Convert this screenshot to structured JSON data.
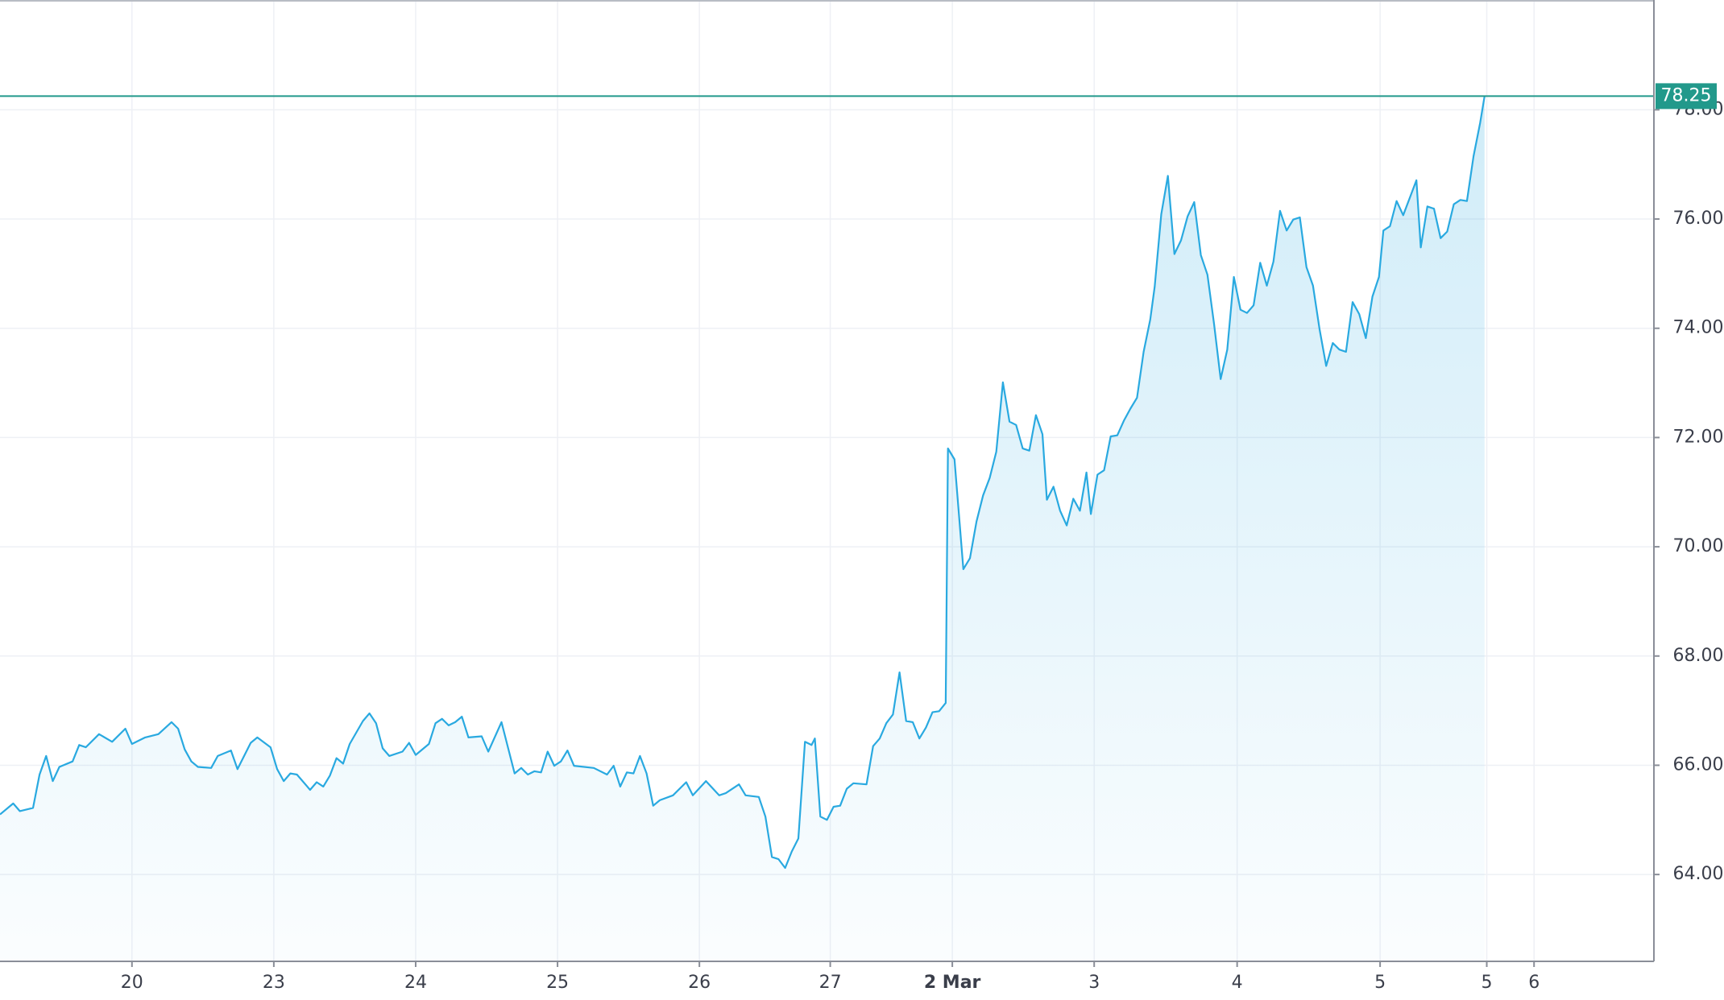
{
  "chart_data": {
    "type": "area",
    "color": "#29a9e0",
    "price_line_color": "#22998b",
    "grid": true,
    "current_price": 78.25,
    "xlim": [
      0,
      150.4
    ],
    "ylim": [
      62.41,
      80.01
    ],
    "yticks": [
      {
        "value": 64,
        "label": "64.00"
      },
      {
        "value": 66,
        "label": "66.00"
      },
      {
        "value": 68,
        "label": "68.00"
      },
      {
        "value": 70,
        "label": "70.00"
      },
      {
        "value": 72,
        "label": "72.00"
      },
      {
        "value": 74,
        "label": "74.00"
      },
      {
        "value": 76,
        "label": "76.00"
      },
      {
        "value": 78,
        "label": "78.00"
      }
    ],
    "xticks": [
      {
        "value": 12.0,
        "label": "20"
      },
      {
        "value": 24.9,
        "label": "23"
      },
      {
        "value": 37.8,
        "label": "24"
      },
      {
        "value": 50.7,
        "label": "25"
      },
      {
        "value": 63.6,
        "label": "26"
      },
      {
        "value": 75.5,
        "label": "27"
      },
      {
        "value": 86.6,
        "label": "2 Mar"
      },
      {
        "value": 99.5,
        "label": "3"
      },
      {
        "value": 112.5,
        "label": "4"
      },
      {
        "value": 125.5,
        "label": "5"
      },
      {
        "value": 135.2,
        "label": "5"
      },
      {
        "value": 139.5,
        "label": "6"
      }
    ],
    "x": [
      0,
      1.2,
      1.8,
      3.0,
      3.6,
      4.2,
      4.8,
      5.4,
      6.6,
      7.2,
      7.8,
      9.0,
      10.2,
      11.4,
      12.0,
      13.2,
      14.4,
      15.6,
      16.2,
      16.8,
      17.4,
      18.0,
      19.2,
      19.8,
      21.0,
      21.6,
      22.8,
      23.4,
      24.6,
      25.2,
      25.8,
      26.4,
      27.0,
      28.2,
      28.8,
      29.4,
      30.0,
      30.6,
      31.2,
      31.8,
      33.0,
      33.6,
      34.2,
      34.8,
      35.4,
      36.6,
      37.2,
      37.8,
      39.0,
      39.6,
      40.2,
      40.8,
      41.4,
      42.0,
      42.6,
      43.8,
      44.4,
      45.6,
      46.8,
      47.4,
      48.0,
      48.6,
      49.2,
      49.8,
      50.4,
      51.0,
      51.6,
      52.2,
      54.0,
      55.2,
      55.8,
      56.4,
      57.0,
      57.6,
      58.2,
      58.8,
      59.4,
      60.0,
      61.2,
      62.4,
      63.0,
      64.2,
      65.4,
      66.0,
      67.2,
      67.8,
      69.0,
      69.6,
      70.2,
      70.8,
      71.4,
      72.0,
      72.6,
      73.2,
      73.8,
      74.1,
      74.6,
      75.2,
      75.8,
      76.4,
      77.0,
      77.6,
      78.8,
      79.4,
      80.0,
      80.6,
      81.2,
      81.8,
      82.4,
      83.0,
      83.6,
      84.2,
      84.8,
      85.4,
      86.0,
      86.2,
      86.8,
      87.6,
      88.2,
      88.8,
      89.4,
      90.0,
      90.6,
      91.2,
      91.8,
      92.4,
      93.0,
      93.6,
      94.2,
      94.8,
      95.2,
      95.8,
      96.4,
      97.0,
      97.6,
      98.2,
      98.8,
      99.2,
      99.8,
      100.4,
      101.0,
      101.6,
      102.2,
      102.8,
      103.4,
      104.0,
      104.6,
      105.0,
      105.6,
      106.2,
      106.8,
      107.4,
      108.0,
      108.6,
      109.2,
      109.8,
      110.4,
      111.0,
      111.6,
      112.2,
      112.8,
      113.4,
      114.0,
      114.6,
      115.2,
      115.8,
      116.4,
      117.0,
      117.6,
      118.2,
      118.8,
      119.4,
      120.0,
      120.6,
      121.2,
      121.8,
      122.4,
      123.0,
      123.6,
      124.2,
      124.8,
      125.4,
      125.8,
      126.4,
      127.0,
      127.6,
      128.2,
      128.8,
      129.2,
      129.8,
      130.4,
      131.0,
      131.6,
      132.2,
      132.8,
      133.4,
      134.0,
      134.6,
      135.0
    ],
    "values": [
      65.1,
      65.3,
      65.16,
      65.22,
      65.83,
      66.17,
      65.71,
      65.97,
      66.07,
      66.37,
      66.33,
      66.57,
      66.43,
      66.67,
      66.39,
      66.51,
      66.57,
      66.79,
      66.67,
      66.29,
      66.07,
      65.97,
      65.95,
      66.17,
      66.27,
      65.93,
      66.41,
      66.51,
      66.33,
      65.93,
      65.71,
      65.85,
      65.83,
      65.55,
      65.69,
      65.61,
      65.81,
      66.13,
      66.03,
      66.39,
      66.81,
      66.95,
      66.77,
      66.31,
      66.17,
      66.25,
      66.41,
      66.19,
      66.39,
      66.77,
      66.85,
      66.73,
      66.79,
      66.89,
      66.51,
      66.53,
      66.25,
      66.79,
      65.85,
      65.95,
      65.83,
      65.89,
      65.87,
      66.25,
      65.99,
      66.07,
      66.27,
      65.99,
      65.95,
      65.83,
      65.99,
      65.61,
      65.87,
      65.85,
      66.17,
      65.85,
      65.26,
      65.36,
      65.45,
      65.69,
      65.45,
      65.71,
      65.45,
      65.49,
      65.65,
      65.45,
      65.42,
      65.06,
      64.32,
      64.28,
      64.12,
      64.42,
      64.66,
      66.43,
      66.37,
      66.49,
      65.06,
      65.0,
      65.24,
      65.26,
      65.57,
      65.67,
      65.65,
      66.35,
      66.49,
      66.77,
      66.93,
      67.7,
      66.81,
      66.79,
      66.49,
      66.69,
      66.97,
      66.99,
      67.14,
      71.8,
      71.6,
      69.59,
      69.79,
      70.46,
      70.94,
      71.26,
      71.74,
      73.01,
      72.29,
      72.23,
      71.8,
      71.76,
      72.41,
      72.06,
      70.86,
      71.1,
      70.66,
      70.39,
      70.88,
      70.66,
      71.36,
      70.6,
      71.32,
      71.4,
      72.02,
      72.04,
      72.31,
      72.53,
      72.73,
      73.57,
      74.16,
      74.76,
      76.09,
      76.79,
      75.36,
      75.61,
      76.05,
      76.31,
      75.34,
      74.98,
      74.08,
      73.07,
      73.61,
      74.94,
      74.34,
      74.28,
      74.42,
      75.2,
      74.78,
      75.22,
      76.15,
      75.79,
      75.99,
      76.03,
      75.12,
      74.78,
      73.98,
      73.31,
      73.73,
      73.61,
      73.57,
      74.48,
      74.26,
      73.82,
      74.58,
      74.94,
      75.79,
      75.87,
      76.33,
      76.07,
      76.39,
      76.71,
      75.48,
      76.23,
      76.19,
      75.65,
      75.77,
      76.27,
      76.35,
      76.33,
      77.15,
      77.76,
      78.25
    ]
  }
}
